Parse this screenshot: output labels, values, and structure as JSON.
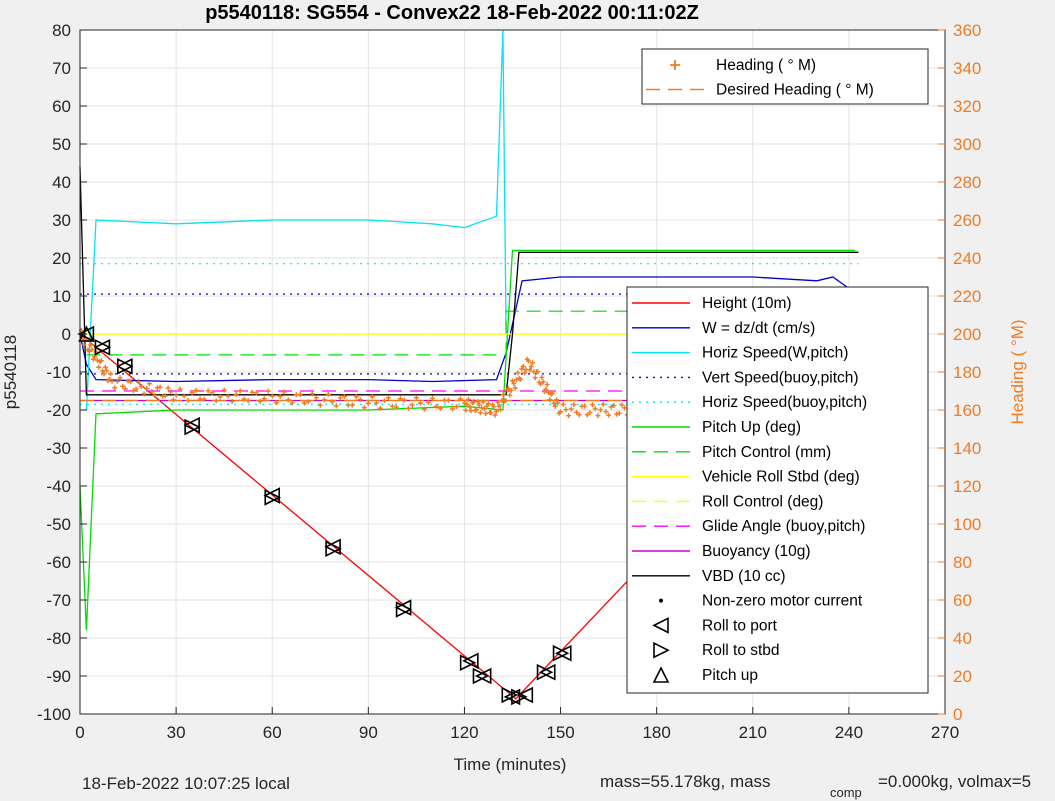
{
  "chart_data": {
    "type": "line",
    "title": "p5540118: SG554 - Convex22 18-Feb-2022 00:11:02Z",
    "xlabel": "Time (minutes)",
    "ylabel": "p5540118",
    "ylabel_right": "Heading (  °M)",
    "xlim": [
      0,
      270
    ],
    "ylim": [
      -100,
      80
    ],
    "ylim_right": [
      0,
      360
    ],
    "xticks": [
      0,
      30,
      60,
      90,
      120,
      150,
      180,
      210,
      240,
      270
    ],
    "yticks": [
      -100,
      -90,
      -80,
      -70,
      -60,
      -50,
      -40,
      -30,
      -20,
      -10,
      0,
      10,
      20,
      30,
      40,
      50,
      60,
      70,
      80
    ],
    "yticks_right": [
      0,
      20,
      40,
      60,
      80,
      100,
      120,
      140,
      160,
      180,
      200,
      220,
      240,
      260,
      280,
      300,
      320,
      340,
      360
    ],
    "grid": true,
    "legend_top": {
      "placement": "top-right",
      "entries": [
        {
          "name": "Heading (  ° M)",
          "color": "#f07b24",
          "style": "marker-plus"
        },
        {
          "name": "Desired Heading (    ° M)",
          "color": "#f07b24",
          "style": "dash"
        }
      ]
    },
    "legend_main": {
      "placement": "right",
      "entries": [
        {
          "name": "Height (10m)",
          "color": "#ff0000",
          "style": "solid"
        },
        {
          "name": "W = dz/dt (cm/s)",
          "color": "#0000cc",
          "style": "solid"
        },
        {
          "name": "Horiz Speed(W,pitch)",
          "color": "#00e5ee",
          "style": "solid"
        },
        {
          "name": "Vert Speed(buoy,pitch)",
          "color": "#0000cc",
          "style": "dot"
        },
        {
          "name": "Horiz Speed(buoy,pitch)",
          "color": "#00e5ee",
          "style": "dot"
        },
        {
          "name": "Pitch Up (deg)",
          "color": "#00dd00",
          "style": "solid"
        },
        {
          "name": "Pitch Control (mm)",
          "color": "#00dd00",
          "style": "dash"
        },
        {
          "name": "Vehicle Roll Stbd (deg)",
          "color": "#ffff00",
          "style": "solid"
        },
        {
          "name": "Roll Control (deg)",
          "color": "#ffff00",
          "style": "dash"
        },
        {
          "name": "Glide Angle (buoy,pitch)",
          "color": "#ff00ff",
          "style": "dash"
        },
        {
          "name": "Buoyancy (10g)",
          "color": "#cc00cc",
          "style": "solid"
        },
        {
          "name": "VBD (10 cc)",
          "color": "#000000",
          "style": "solid"
        },
        {
          "name": "Non-zero motor current",
          "color": "#000000",
          "style": "marker-dot"
        },
        {
          "name": "Roll to port",
          "color": "#000000",
          "style": "marker-tri-left"
        },
        {
          "name": "Roll to stbd",
          "color": "#000000",
          "style": "marker-tri-right"
        },
        {
          "name": "Pitch up",
          "color": "#000000",
          "style": "marker-tri-up"
        }
      ]
    },
    "series": [
      {
        "name": "Height (10m)",
        "x": [
          0,
          136,
          243
        ],
        "y": [
          0,
          -96,
          -1
        ]
      },
      {
        "name": "W = dz/dt (cm/s)",
        "x": [
          0,
          2,
          5,
          30,
          60,
          90,
          110,
          130,
          133,
          138,
          150,
          180,
          210,
          230,
          235,
          240,
          242
        ],
        "y": [
          0,
          -8,
          -12,
          -12.5,
          -12,
          -12,
          -12.5,
          -12,
          -5,
          14,
          15,
          15,
          15,
          14,
          15,
          12,
          12
        ]
      },
      {
        "name": "Horiz Speed(W,pitch)",
        "x": [
          2,
          5,
          30,
          60,
          90,
          110,
          120,
          130,
          132,
          133
        ],
        "y": [
          -20,
          30,
          29,
          30,
          30,
          29,
          28,
          31,
          80,
          0
        ]
      },
      {
        "name": "Vert Speed(buoy,pitch) level",
        "x": [
          0,
          243
        ],
        "y": [
          10.5,
          10.5
        ]
      },
      {
        "name": "Vert Speed(buoy,pitch) low",
        "x": [
          0,
          243
        ],
        "y": [
          -10.5,
          -10.5
        ]
      },
      {
        "name": "Horiz Speed(buoy,pitch) upper",
        "x": [
          0,
          243
        ],
        "y": [
          18.5,
          18.5
        ]
      },
      {
        "name": "Horiz Speed(buoy,pitch) lower",
        "x": [
          0,
          243
        ],
        "y": [
          -18.5,
          -18.5
        ]
      },
      {
        "name": "Pitch Up (deg)",
        "x": [
          0,
          2,
          5,
          30,
          60,
          90,
          120,
          132,
          135,
          150,
          180,
          210,
          240,
          242
        ],
        "y": [
          -40,
          -78,
          -21,
          -20,
          -20,
          -20,
          -19,
          -20,
          22,
          22,
          22,
          22,
          22,
          22
        ]
      },
      {
        "name": "Pitch Control (mm)",
        "x": [
          2,
          133,
          133,
          243
        ],
        "y": [
          -5.5,
          -5.5,
          6,
          6
        ]
      },
      {
        "name": "Vehicle Roll Stbd (deg)",
        "x": [
          0,
          243
        ],
        "y": [
          0,
          0
        ]
      },
      {
        "name": "Roll Control (deg)",
        "x": [
          0,
          243
        ],
        "y": [
          0,
          0
        ]
      },
      {
        "name": "Glide Angle (buoy,pitch)",
        "x": [
          0,
          243
        ],
        "y": [
          -15,
          -15
        ]
      },
      {
        "name": "Buoyancy (10g)",
        "x": [
          0,
          243
        ],
        "y": [
          -17.5,
          -17.5
        ]
      },
      {
        "name": "VBD (10 cc)",
        "x": [
          0,
          2,
          133,
          135,
          137,
          243
        ],
        "y": [
          44,
          -16,
          -16,
          0,
          21.5,
          21.5
        ]
      },
      {
        "name": "Heading (  ° M)",
        "x": [
          0,
          10,
          30,
          60,
          90,
          120,
          130,
          140,
          150,
          170,
          190,
          210,
          230,
          243
        ],
        "y": [
          200,
          175,
          168,
          167,
          164,
          163,
          160,
          185,
          160,
          160,
          170,
          160,
          160,
          180
        ]
      },
      {
        "name": "Desired Heading (    ° M)",
        "x": [
          0,
          243
        ],
        "y": [
          165,
          165
        ]
      },
      {
        "name": "Roll to port",
        "x": [
          2,
          7,
          14,
          35,
          60,
          79,
          101,
          122,
          126,
          135,
          139,
          146,
          151,
          181,
          200,
          243
        ],
        "y": [
          0,
          -3.5,
          -8.5,
          -24,
          -42.5,
          -56,
          -72,
          -86,
          -90,
          -95.5,
          -95,
          -89,
          -84,
          -55,
          -38,
          -0.5
        ]
      },
      {
        "name": "Roll to stbd",
        "x": [
          7,
          14,
          35,
          60,
          79,
          101,
          121,
          125,
          134,
          137,
          145,
          150,
          181,
          200
        ],
        "y": [
          -3.5,
          -8.5,
          -24.5,
          -43,
          -56.5,
          -72.5,
          -86.5,
          -90,
          -95,
          -95.5,
          -89,
          -84,
          -55,
          -38
        ]
      },
      {
        "name": "Pitch up",
        "x": [
          2
        ],
        "y": [
          0
        ]
      }
    ]
  },
  "footer": {
    "local_time": "18-Feb-2022 10:07:25 local",
    "mass_text": "mass=55.178kg, mass",
    "comp_sub": "comp",
    "comp_text": "=0.000kg, volmax=5"
  }
}
